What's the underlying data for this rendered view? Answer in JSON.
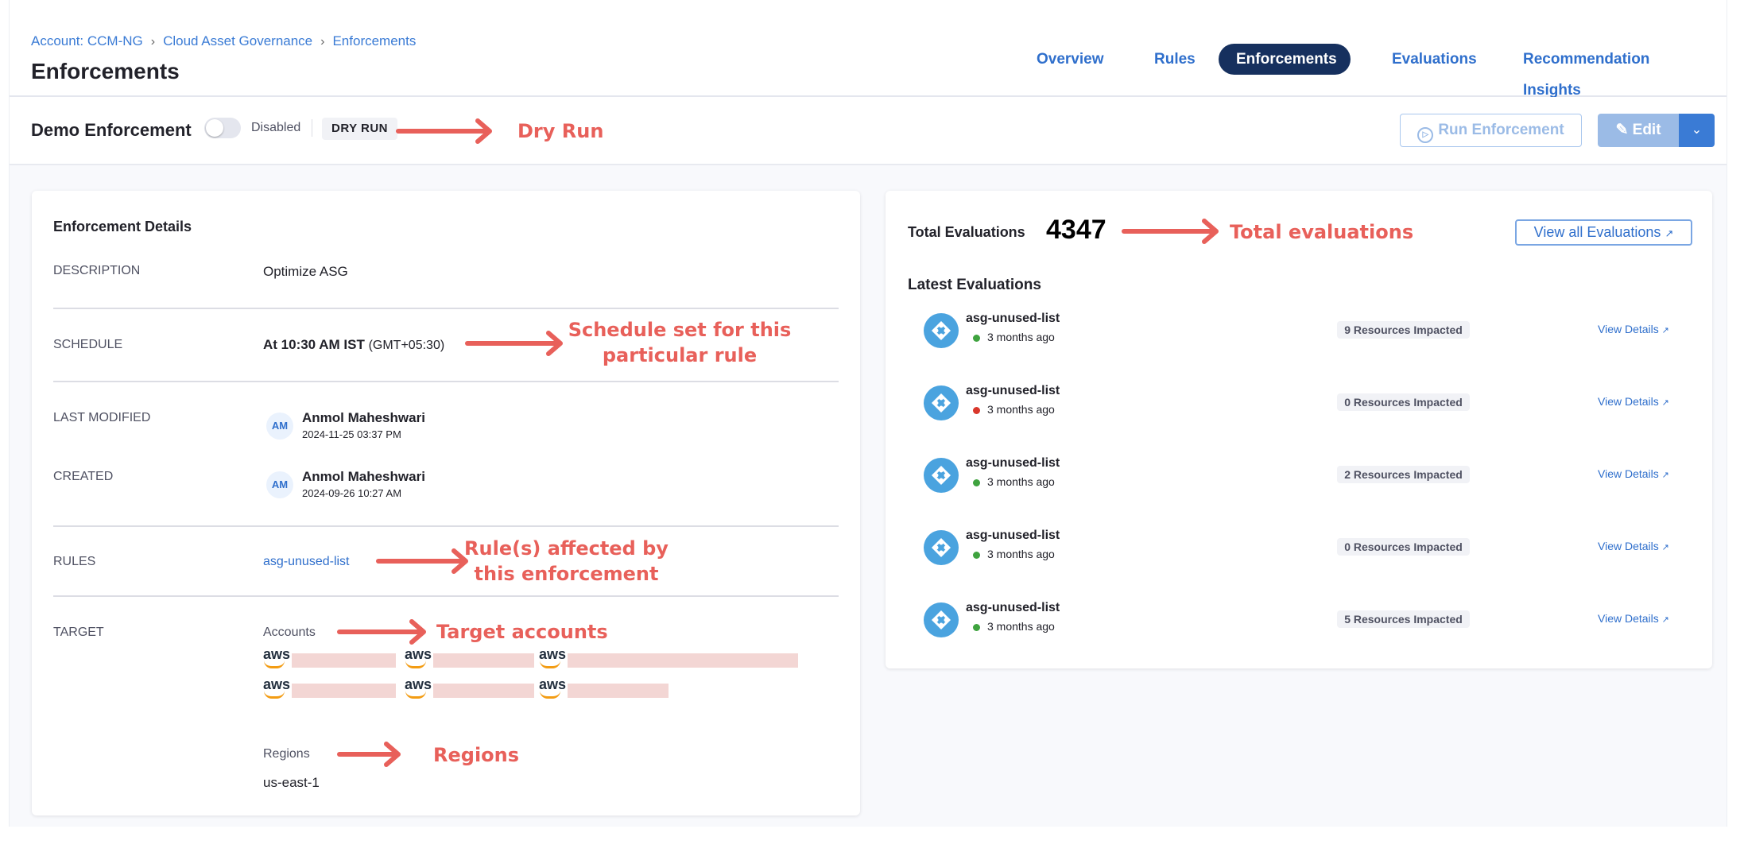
{
  "breadcrumb": [
    "Account: CCM-NG",
    "Cloud Asset Governance",
    "Enforcements"
  ],
  "page_title": "Enforcements",
  "tabs": [
    {
      "label": "Overview"
    },
    {
      "label": "Rules"
    },
    {
      "label": "Enforcements",
      "active": true
    },
    {
      "label": "Evaluations"
    },
    {
      "label": "Recommendation Insights"
    }
  ],
  "enforcement": {
    "name": "Demo Enforcement",
    "toggle_state": "Disabled",
    "toggle_on": false,
    "mode_badge": "DRY RUN",
    "run_button": "Run Enforcement",
    "edit_button": "Edit"
  },
  "details": {
    "title": "Enforcement Details",
    "description_label": "DESCRIPTION",
    "description": "Optimize ASG",
    "schedule_label": "SCHEDULE",
    "schedule": "At 10:30 AM IST",
    "schedule_tz": "(GMT+05:30)",
    "last_modified_label": "LAST MODIFIED",
    "last_modified": {
      "initials": "AM",
      "name": "Anmol Maheshwari",
      "date": "2024-11-25 03:37 PM"
    },
    "created_label": "CREATED",
    "created": {
      "initials": "AM",
      "name": "Anmol Maheshwari",
      "date": "2024-09-26 10:27 AM"
    },
    "rules_label": "RULES",
    "rule": "asg-unused-list",
    "target_label": "TARGET",
    "accounts_label": "Accounts",
    "account_provider": "aws",
    "regions_label": "Regions",
    "region": "us-east-1"
  },
  "evaluations": {
    "total_label": "Total Evaluations",
    "total": "4347",
    "view_all": "View all Evaluations",
    "latest_title": "Latest Evaluations",
    "items": [
      {
        "name": "asg-unused-list",
        "time": "3 months ago",
        "status": "success",
        "impacted": "9 Resources Impacted",
        "link": "View Details"
      },
      {
        "name": "asg-unused-list",
        "time": "3 months ago",
        "status": "failed",
        "impacted": "0 Resources Impacted",
        "link": "View Details"
      },
      {
        "name": "asg-unused-list",
        "time": "3 months ago",
        "status": "success",
        "impacted": "2 Resources Impacted",
        "link": "View Details"
      },
      {
        "name": "asg-unused-list",
        "time": "3 months ago",
        "status": "success",
        "impacted": "0 Resources Impacted",
        "link": "View Details"
      },
      {
        "name": "asg-unused-list",
        "time": "3 months ago",
        "status": "success",
        "impacted": "5 Resources Impacted",
        "link": "View Details"
      }
    ]
  },
  "annotations": {
    "dry_run": "Dry Run",
    "total": "Total evaluations",
    "schedule_1": "Schedule set for this",
    "schedule_2": "particular rule",
    "rules_1": "Rule(s) affected by",
    "rules_2": "this enforcement",
    "target": "Target accounts",
    "regions": "Regions"
  },
  "colors": {
    "accent": "#2f6fcc",
    "active_tab": "#16305e",
    "annotation": "#e8605a",
    "success": "#3fa33f",
    "failed": "#d9372b",
    "eval_icon": "#4aa3df"
  }
}
